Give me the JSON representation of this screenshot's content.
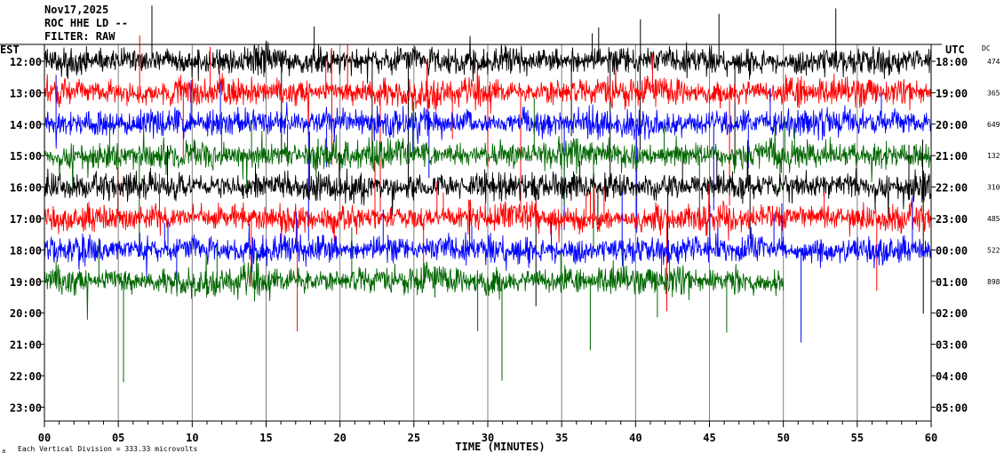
{
  "header": {
    "date": "Nov17,2025",
    "station": "ROC HHE LD --",
    "filter": "FILTER: RAW"
  },
  "labels": {
    "left_tz": "EST",
    "right_tz": "UTC",
    "dc": "DC",
    "scale_note": "Each Vertical Division = 333.33 microvolts",
    "corner_mark": "a"
  },
  "chart_data": {
    "type": "line",
    "title": "",
    "xlabel": "TIME (MINUTES)",
    "xlim": [
      0,
      60
    ],
    "x_ticks": [
      "00",
      "05",
      "10",
      "15",
      "20",
      "25",
      "30",
      "35",
      "40",
      "45",
      "50",
      "55",
      "60"
    ],
    "y_left_ticks": [
      "12:00",
      "13:00",
      "14:00",
      "15:00",
      "16:00",
      "17:00",
      "18:00",
      "19:00",
      "20:00",
      "21:00",
      "22:00",
      "23:00"
    ],
    "y_right_ticks": [
      "18:00",
      "19:00",
      "20:00",
      "21:00",
      "22:00",
      "23:00",
      "00:00",
      "01:00",
      "02:00",
      "03:00",
      "04:00",
      "05:00"
    ],
    "dc_values": [
      "474",
      "365",
      "649",
      "132",
      "310",
      "485",
      "522",
      "898"
    ],
    "colors": [
      "#000000",
      "#ff0000",
      "#0000ff",
      "#006600"
    ],
    "trace_color_order": [
      "black",
      "red",
      "blue",
      "green"
    ],
    "traces_recorded": 8,
    "last_trace_end_minute": 50
  }
}
